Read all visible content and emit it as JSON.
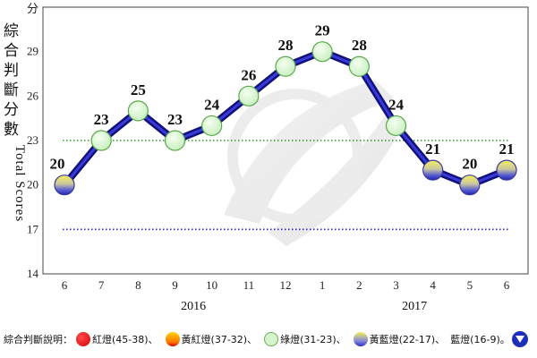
{
  "chart_data": {
    "type": "line",
    "ylabel_cjk": "綜合判斷分數",
    "ylabel_en": "Total Scores",
    "y_unit": "分",
    "ylim": [
      14,
      32
    ],
    "yticks": [
      14,
      17,
      20,
      23,
      26,
      29
    ],
    "x": [
      "6",
      "7",
      "8",
      "9",
      "10",
      "11",
      "12",
      "1",
      "2",
      "3",
      "4",
      "5",
      "6"
    ],
    "year_labels": [
      {
        "label": "2016",
        "at_index": 3.5
      },
      {
        "label": "2017",
        "at_index": 9.5
      }
    ],
    "series": [
      {
        "values": [
          20,
          23,
          25,
          23,
          24,
          26,
          28,
          29,
          28,
          24,
          21,
          20,
          21
        ],
        "signal": [
          "yellow-blue",
          "green",
          "green",
          "green",
          "green",
          "green",
          "green",
          "green",
          "green",
          "green",
          "yellow-blue",
          "yellow-blue",
          "yellow-blue"
        ]
      }
    ],
    "reference_lines": [
      {
        "value": 23,
        "color": "#2e9a2e",
        "style": "dotted"
      },
      {
        "value": 17,
        "color": "#2323c8",
        "style": "dotted"
      }
    ],
    "grid": false,
    "colors": {
      "line": "#1a1a9c",
      "green_fill": "#d6f5cf",
      "green_stroke": "#5aa84a",
      "yb_top": "#f4ef59",
      "yb_bottom": "#2a2ec8"
    }
  },
  "legend": {
    "title": "綜合判斷說明：",
    "items": [
      {
        "label": "紅燈(45-38)、",
        "icon": "red-light"
      },
      {
        "label": "黃紅燈(37-32)、",
        "icon": "yellow-red-light"
      },
      {
        "label": "綠燈(31-23)、",
        "icon": "green-light"
      },
      {
        "label": "黃藍燈(22-17)、",
        "icon": "yellow-blue-light"
      },
      {
        "label": "藍燈(16-9)。",
        "icon": "blue-light"
      }
    ]
  }
}
